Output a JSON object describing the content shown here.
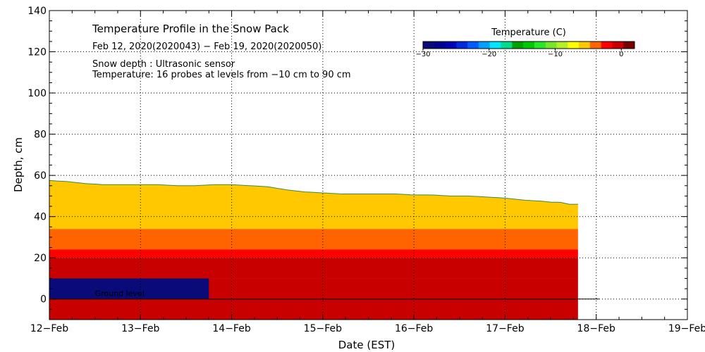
{
  "chart_data": {
    "type": "heatmap",
    "title": "Temperature Profile in the Snow Pack",
    "date_range": "Feb 12, 2020(2020043) − Feb 19, 2020(2020050)",
    "note_snow_depth": "Snow depth : Ultrasonic sensor",
    "note_temperature": "Temperature: 16 probes at levels from −10 cm to 90 cm",
    "xlabel": "Date (EST)",
    "ylabel": "Depth, cm",
    "x_tick_labels": [
      "12−Feb",
      "13−Feb",
      "14−Feb",
      "15−Feb",
      "16−Feb",
      "17−Feb",
      "18−Feb",
      "19−Feb"
    ],
    "x_range_days": [
      0,
      7
    ],
    "y_ticks": [
      0,
      20,
      40,
      60,
      80,
      100,
      120,
      140
    ],
    "ylim": [
      -10,
      140
    ],
    "grid": true,
    "ground_level_label": "Ground level",
    "colorbar": {
      "label": "Temperature (C)",
      "vmin": -30,
      "vmax": 2,
      "tick_values": [
        -30,
        -20,
        -10,
        0
      ],
      "tick_labels": [
        "−30",
        "−20",
        "−10",
        "0"
      ],
      "colors": [
        "#0a0a78",
        "#00008c",
        "#0000b4",
        "#0028dc",
        "#005aff",
        "#00a0ff",
        "#00e6ff",
        "#00dc8c",
        "#00a000",
        "#00c800",
        "#28e628",
        "#78e628",
        "#b4f028",
        "#ffff00",
        "#ffc800",
        "#ff6400",
        "#ff0000",
        "#c80000",
        "#780000"
      ]
    },
    "snow_depth_cm": {
      "day": [
        0,
        0.2,
        0.4,
        0.6,
        0.8,
        1.0,
        1.2,
        1.4,
        1.6,
        1.8,
        2.0,
        2.2,
        2.4,
        2.6,
        2.8,
        3.0,
        3.2,
        3.4,
        3.6,
        3.8,
        4.0,
        4.2,
        4.4,
        4.6,
        4.8,
        5.0,
        5.2,
        5.4,
        5.5,
        5.6,
        5.7
      ],
      "depth": [
        57.5,
        57,
        56,
        55.5,
        55.5,
        55.5,
        55.5,
        55,
        55,
        55.5,
        55.5,
        55,
        54.5,
        53,
        52,
        51.5,
        51,
        51,
        51,
        51,
        50.5,
        50.5,
        50,
        50,
        49.5,
        49,
        48,
        47.5,
        47,
        47,
        46
      ]
    },
    "layers": [
      {
        "from_cm": 45,
        "to_cm": 60,
        "temperature_c": -7
      },
      {
        "from_cm": 34,
        "to_cm": 45,
        "temperature_c": -5
      },
      {
        "from_cm": 24,
        "to_cm": 34,
        "temperature_c": -4
      },
      {
        "from_cm": 20,
        "to_cm": 24,
        "temperature_c": -2
      },
      {
        "from_cm": 10,
        "to_cm": 20,
        "temperature_c": -1
      },
      {
        "from_cm": 0,
        "to_cm": 10,
        "temperature_c": 0
      },
      {
        "from_cm": -10,
        "to_cm": 0,
        "temperature_c": -1
      }
    ],
    "cold_bottom_period_days": [
      0,
      1.75
    ],
    "cold_bottom_temperature_c": -30,
    "data_end_day": 5.8
  }
}
